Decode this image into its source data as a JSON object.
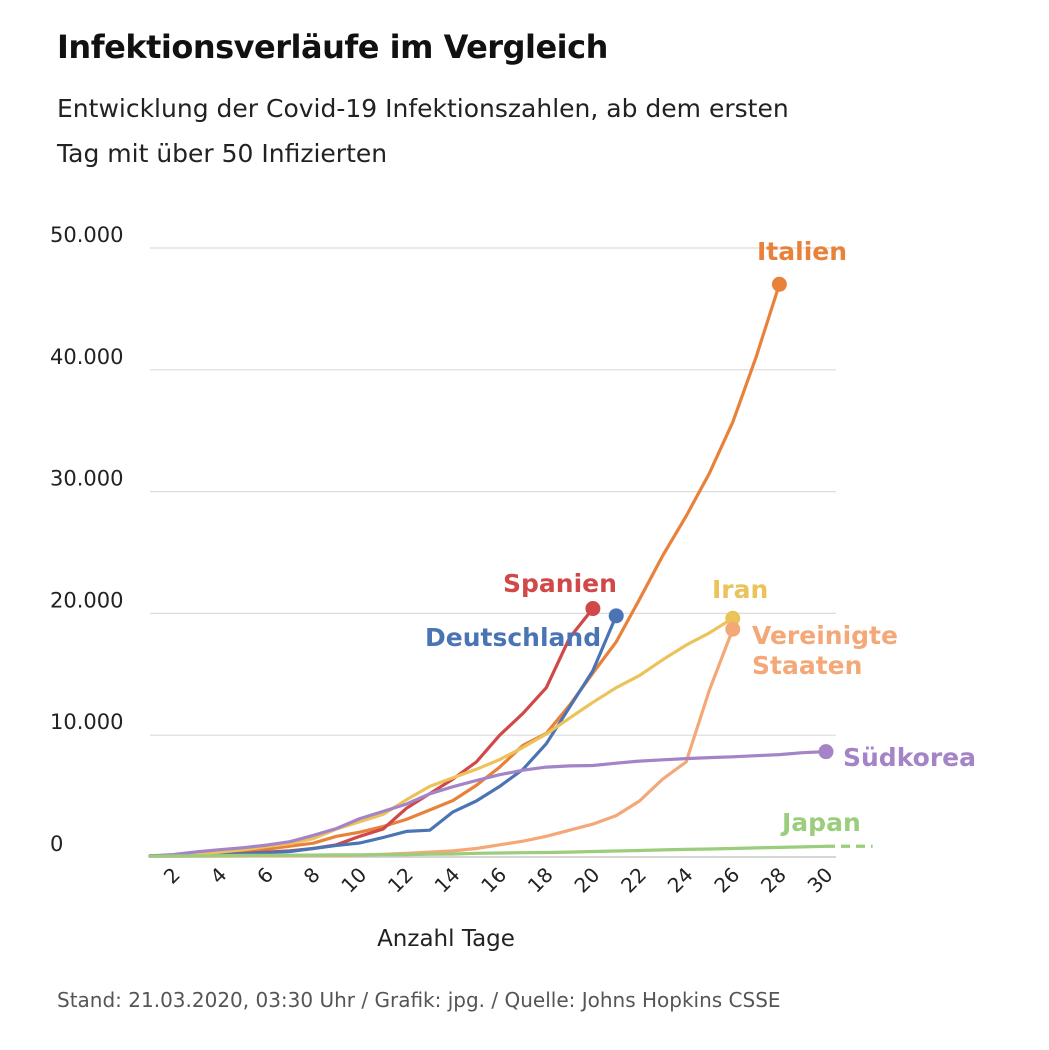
{
  "header": {
    "title": "Infektionsverläufe im Vergleich",
    "subtitle": "Entwicklung der Covid-19 Infektionszahlen, ab dem ersten Tag mit über 50 Infizierten"
  },
  "footer": {
    "source": "Stand: 21.03.2020, 03:30 Uhr / Grafik: jpg. / Quelle: Johns Hopkins CSSE"
  },
  "chart_data": {
    "type": "line",
    "title": "Infektionsverläufe im Vergleich",
    "subtitle": "Entwicklung der Covid-19 Infektionszahlen, ab dem ersten Tag mit über 50 Infizierten",
    "xlabel": "Anzahl Tage",
    "ylabel": "",
    "xlim": [
      1,
      30
    ],
    "ylim": [
      0,
      50000
    ],
    "x_ticks": [
      2,
      4,
      6,
      8,
      10,
      12,
      14,
      16,
      18,
      20,
      22,
      24,
      26,
      28,
      30
    ],
    "y_ticks": [
      {
        "value": 0,
        "label": "0"
      },
      {
        "value": 10000,
        "label": "10.000"
      },
      {
        "value": 20000,
        "label": "20.000"
      },
      {
        "value": 30000,
        "label": "30.000"
      },
      {
        "value": 40000,
        "label": "40.000"
      },
      {
        "value": 50000,
        "label": "50.000"
      }
    ],
    "grid": "horizontal",
    "legend": "direct labels at line ends",
    "series": [
      {
        "name": "Italien",
        "color": "#e8823a",
        "x": [
          1,
          2,
          3,
          4,
          5,
          6,
          7,
          8,
          9,
          10,
          11,
          12,
          13,
          14,
          15,
          16,
          17,
          18,
          19,
          20,
          21,
          22,
          23,
          24,
          25,
          26,
          27,
          28
        ],
        "y": [
          100,
          150,
          230,
          320,
          450,
          650,
          890,
          1130,
          1700,
          2040,
          2500,
          3090,
          3860,
          4640,
          5880,
          7380,
          9170,
          10150,
          12460,
          15110,
          17660,
          21160,
          24750,
          27980,
          31510,
          35710,
          41040,
          47020
        ]
      },
      {
        "name": "Spanien",
        "color": "#d04848",
        "x": [
          1,
          2,
          3,
          4,
          5,
          6,
          7,
          8,
          9,
          10,
          11,
          12,
          13,
          14,
          15,
          16,
          17,
          18,
          19,
          20
        ],
        "y": [
          80,
          120,
          170,
          230,
          300,
          400,
          500,
          700,
          1000,
          1700,
          2300,
          4000,
          5200,
          6400,
          7800,
          10000,
          11800,
          13900,
          18000,
          20400
        ]
      },
      {
        "name": "Deutschland",
        "color": "#4a74b4",
        "x": [
          1,
          2,
          3,
          4,
          5,
          6,
          7,
          8,
          9,
          10,
          11,
          12,
          13,
          14,
          15,
          16,
          17,
          18,
          19,
          20,
          21
        ],
        "y": [
          80,
          110,
          150,
          190,
          260,
          350,
          450,
          700,
          950,
          1150,
          1600,
          2100,
          2200,
          3700,
          4600,
          5800,
          7200,
          9300,
          12300,
          15300,
          19800
        ]
      },
      {
        "name": "Iran",
        "color": "#ebc35a",
        "x": [
          1,
          2,
          3,
          4,
          5,
          6,
          7,
          8,
          9,
          10,
          11,
          12,
          13,
          14,
          15,
          16,
          17,
          18,
          19,
          20,
          21,
          22,
          23,
          24,
          25,
          26
        ],
        "y": [
          60,
          140,
          250,
          390,
          590,
          850,
          1100,
          1500,
          2300,
          2900,
          3500,
          4700,
          5800,
          6500,
          7200,
          8000,
          9000,
          10100,
          11400,
          12700,
          13900,
          14900,
          16200,
          17400,
          18400,
          19600
        ]
      },
      {
        "name": "Vereinigte Staaten",
        "color": "#f4a878",
        "x": [
          1,
          2,
          3,
          4,
          5,
          6,
          7,
          8,
          9,
          10,
          11,
          12,
          13,
          14,
          15,
          16,
          17,
          18,
          19,
          20,
          21,
          22,
          23,
          24,
          25,
          26
        ],
        "y": [
          60,
          60,
          70,
          70,
          80,
          90,
          100,
          110,
          130,
          160,
          220,
          300,
          400,
          500,
          700,
          1000,
          1300,
          1700,
          2200,
          2700,
          3400,
          4600,
          6400,
          7800,
          13700,
          18700
        ]
      },
      {
        "name": "Südkorea",
        "color": "#a484c6",
        "x": [
          1,
          2,
          3,
          4,
          5,
          6,
          7,
          8,
          9,
          10,
          11,
          12,
          13,
          14,
          15,
          16,
          17,
          18,
          19,
          20,
          21,
          22,
          23,
          24,
          25,
          26,
          27,
          28,
          29,
          30
        ],
        "y": [
          100,
          200,
          430,
          600,
          760,
          980,
          1260,
          1770,
          2340,
          3150,
          3740,
          4340,
          5190,
          5770,
          6280,
          6760,
          7130,
          7380,
          7480,
          7510,
          7700,
          7870,
          7980,
          8080,
          8160,
          8230,
          8320,
          8410,
          8560,
          8650
        ]
      },
      {
        "name": "Japan",
        "color": "#9acd7c",
        "x": [
          1,
          2,
          3,
          4,
          5,
          6,
          7,
          8,
          9,
          10,
          11,
          12,
          13,
          14,
          15,
          16,
          17,
          18,
          19,
          20,
          21,
          22,
          23,
          24,
          25,
          26,
          27,
          28,
          29,
          30
        ],
        "y": [
          60,
          80,
          100,
          110,
          130,
          140,
          150,
          160,
          170,
          180,
          190,
          200,
          230,
          250,
          300,
          330,
          350,
          370,
          400,
          450,
          490,
          530,
          580,
          620,
          660,
          700,
          750,
          790,
          830,
          880
        ],
        "dashed_tail_to_x": 32
      }
    ]
  }
}
